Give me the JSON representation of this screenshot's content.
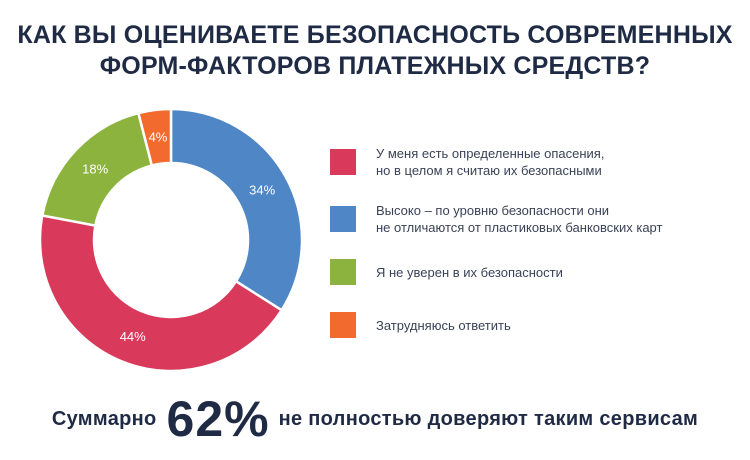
{
  "title": {
    "line1": "КАК ВЫ ОЦЕНИВАЕТЕ БЕЗОПАСНОСТЬ СОВРЕМЕННЫХ",
    "line2": "ФОРМ-ФАКТОРОВ ПЛАТЕЖНЫХ СРЕДСТВ?"
  },
  "chart_data": {
    "type": "pie",
    "donut": true,
    "title": "КАК ВЫ ОЦЕНИВАЕТЕ БЕЗОПАСНОСТЬ СОВРЕМЕННЫХ ФОРМ-ФАКТОРОВ ПЛАТЕЖНЫХ СРЕДСТВ?",
    "legend_position": "right",
    "slices": [
      {
        "label": "Высоко – по уровню безопасности они не отличаются от пластиковых банковских карт",
        "value": 34,
        "display": "34%",
        "color": "#4f86c6"
      },
      {
        "label": "У меня есть определенные опасения, но в целом я считаю их безопасными",
        "value": 44,
        "display": "44%",
        "color": "#d93a5b"
      },
      {
        "label": "Я не уверен в их безопасности",
        "value": 18,
        "display": "18%",
        "color": "#8db33f"
      },
      {
        "label": "Затрудняюсь ответить",
        "value": 4,
        "display": "4%",
        "color": "#f26a2e"
      }
    ]
  },
  "legend": [
    {
      "line1": "У меня есть определенные опасения,",
      "line2": "но в целом я считаю их безопасными",
      "color": "#d93a5b"
    },
    {
      "line1": "Высоко – по уровню безопасности они",
      "line2": "не отличаются от пластиковых банковских карт",
      "color": "#4f86c6"
    },
    {
      "line1": "Я не уверен в их безопасности",
      "line2": "",
      "color": "#8db33f"
    },
    {
      "line1": "Затрудняюсь ответить",
      "line2": "",
      "color": "#f26a2e"
    }
  ],
  "footer": {
    "prefix": "Суммарно",
    "highlight": "62%",
    "suffix": "не полностью доверяют таким сервисам"
  },
  "colors": {
    "text_dark": "#1f2a44",
    "text_legend": "#3a4257"
  }
}
